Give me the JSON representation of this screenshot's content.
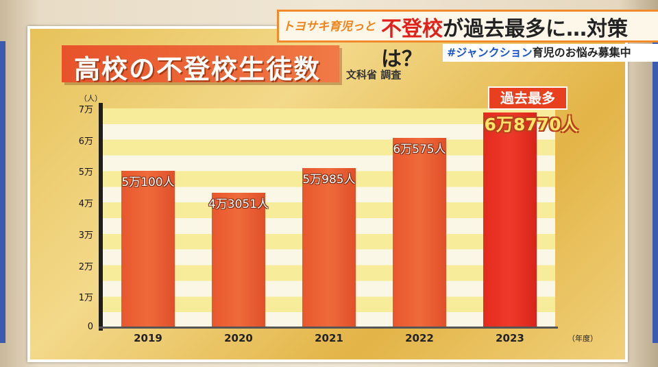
{
  "banner": {
    "show_name": "トヨサキ育児っと",
    "headline_red": "不登校",
    "headline_rest": "が過去最多に…対策は？",
    "hashtag": "#ジャンクション",
    "hashtag_rest": "育児のお悩み募集中"
  },
  "board": {
    "title": "高校の不登校生徒数",
    "source": "文科省 調査",
    "record_badge": "過去最多",
    "record_value": "6万8770人"
  },
  "colors": {
    "bar": "#ec5f32",
    "bar_highlight": "#e8301f",
    "banner_border": "#f08a2a",
    "hashtag": "#1e56c8"
  },
  "chart_data": {
    "type": "bar",
    "title": "高校の不登校生徒数",
    "y_unit_label": "（人）",
    "x_unit_label": "（年度）",
    "categories": [
      "2019",
      "2020",
      "2021",
      "2022",
      "2023"
    ],
    "values": [
      50100,
      43051,
      50985,
      60575,
      68770
    ],
    "data_labels": [
      "5万100人",
      "4万3051人",
      "5万985人",
      "6万575人",
      "6万8770人"
    ],
    "highlight_index": 4,
    "ylim": [
      0,
      70000
    ],
    "yticks": [
      0,
      10000,
      20000,
      30000,
      40000,
      50000,
      60000,
      70000
    ],
    "ytick_labels": [
      "0",
      "1万",
      "2万",
      "3万",
      "4万",
      "5万",
      "6万",
      "7万"
    ],
    "grid": "horizontal bands"
  }
}
